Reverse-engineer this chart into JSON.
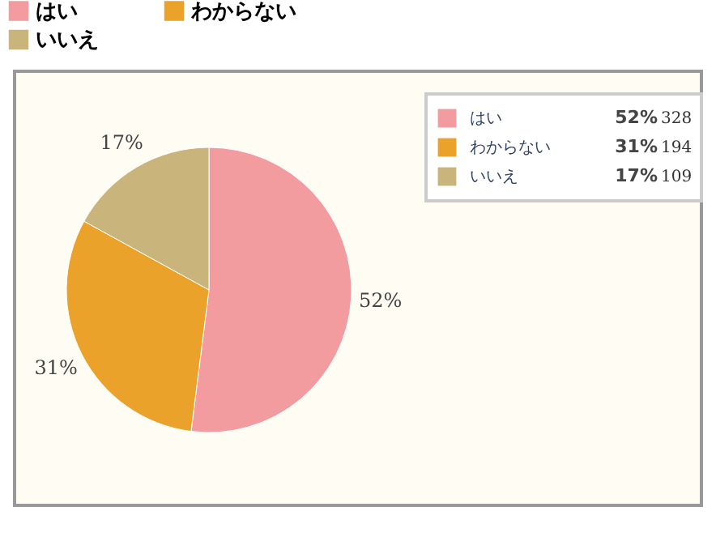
{
  "chart_data": {
    "type": "pie",
    "categories": [
      "はい",
      "わからない",
      "いいえ"
    ],
    "values": [
      52,
      31,
      17
    ],
    "annotations": [
      "328",
      "194",
      "109"
    ],
    "colors": [
      "#f29c9f",
      "#eba22a",
      "#c9b47c"
    ],
    "value_labels": [
      "52%",
      "31%",
      "17%"
    ],
    "legend": "top"
  }
}
